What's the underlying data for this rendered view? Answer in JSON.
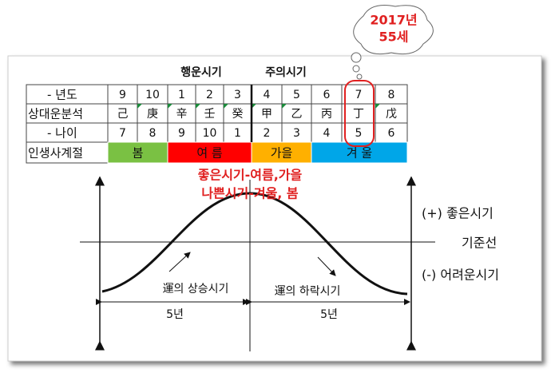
{
  "callout": {
    "year": "2017년",
    "age": "55세"
  },
  "header": {
    "lucky": "행운시기",
    "caution": "주의시기"
  },
  "table": {
    "rows": [
      {
        "label": "- 년도",
        "cells": [
          "9",
          "10",
          "1",
          "2",
          "3",
          "4",
          "5",
          "6",
          "7",
          "8"
        ]
      },
      {
        "label": "상대운분석",
        "cells": [
          "己",
          "庚",
          "辛",
          "壬",
          "癸",
          "甲",
          "乙",
          "丙",
          "丁",
          "戊"
        ]
      },
      {
        "label": "- 나이",
        "cells": [
          "7",
          "8",
          "9",
          "10",
          "1",
          "2",
          "3",
          "4",
          "5",
          "6"
        ]
      }
    ],
    "season_label": "인생사계절",
    "seasons": [
      "봄",
      "여 름",
      "가을",
      "겨 울"
    ]
  },
  "diagram": {
    "good": "좋은시기-여름,가을",
    "bad": "나쁜시기-겨울, 봄",
    "plus": "(+) 좋은시기",
    "baseline": "기준선",
    "minus": "(-) 어려운시기",
    "rise": "運의 상승시기",
    "fall": "運의 하락시기",
    "left_span": "5년",
    "right_span": "5년"
  }
}
